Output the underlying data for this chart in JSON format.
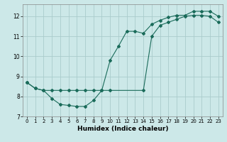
{
  "title": "",
  "xlabel": "Humidex (Indice chaleur)",
  "ylabel": "",
  "bg_color": "#cce8e8",
  "grid_color": "#aacccc",
  "line_color": "#1a6b5a",
  "marker_color": "#1a6b5a",
  "xlim": [
    -0.5,
    23.5
  ],
  "ylim": [
    7,
    12.6
  ],
  "yticks": [
    7,
    8,
    9,
    10,
    11,
    12
  ],
  "xticks": [
    0,
    1,
    2,
    3,
    4,
    5,
    6,
    7,
    8,
    9,
    10,
    11,
    12,
    13,
    14,
    15,
    16,
    17,
    18,
    19,
    20,
    21,
    22,
    23
  ],
  "line1_x": [
    0,
    1,
    2,
    3,
    4,
    5,
    6,
    7,
    8,
    9,
    10,
    11,
    12,
    13,
    14,
    15,
    16,
    17,
    18,
    19,
    20,
    21,
    22,
    23
  ],
  "line1_y": [
    8.7,
    8.4,
    8.3,
    7.9,
    7.6,
    7.55,
    7.5,
    7.5,
    7.8,
    8.3,
    9.8,
    10.5,
    11.25,
    11.25,
    11.15,
    11.6,
    11.8,
    11.95,
    12.05,
    12.05,
    12.25,
    12.25,
    12.25,
    12.0
  ],
  "line2_x": [
    0,
    1,
    2,
    3,
    4,
    5,
    6,
    7,
    8,
    9,
    10,
    14,
    15,
    16,
    17,
    18,
    19,
    20,
    21,
    22,
    23
  ],
  "line2_y": [
    8.7,
    8.4,
    8.3,
    8.3,
    8.3,
    8.3,
    8.3,
    8.3,
    8.3,
    8.3,
    8.3,
    8.3,
    11.0,
    11.55,
    11.7,
    11.85,
    12.0,
    12.05,
    12.05,
    12.0,
    11.7
  ]
}
